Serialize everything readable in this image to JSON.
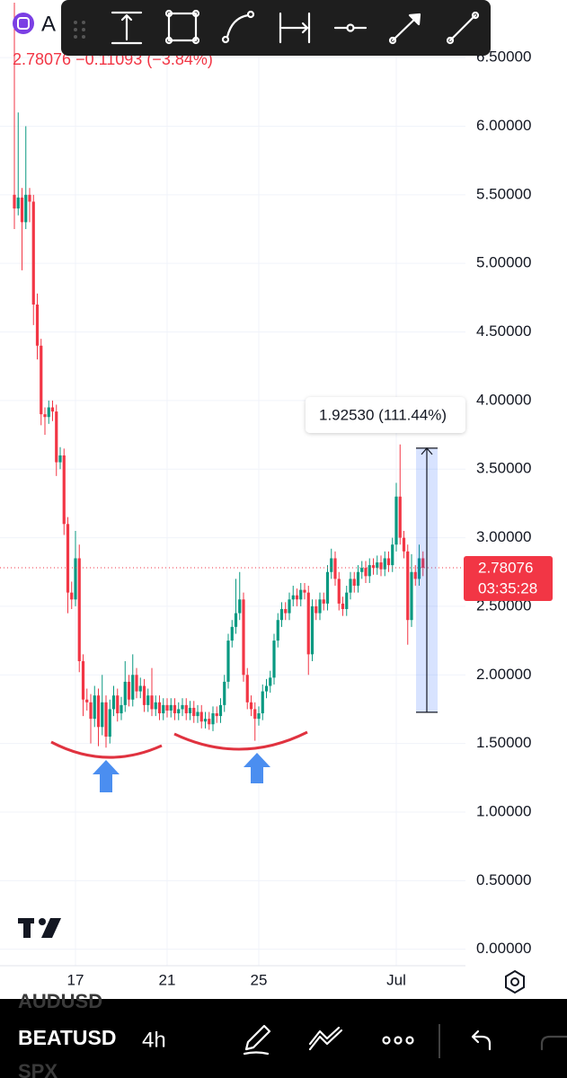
{
  "header": {
    "symbol": "A",
    "quote": "2.78076 −0.11093 (−3.84%)"
  },
  "chart_data": {
    "type": "candlestick",
    "categories": [
      null,
      null,
      null,
      null,
      null,
      null,
      null,
      null,
      null,
      null,
      null,
      null,
      null,
      null,
      null,
      null,
      "17",
      null,
      null,
      null,
      null,
      null,
      null,
      null,
      null,
      null,
      null,
      null,
      null,
      null,
      null,
      null,
      null,
      null,
      null,
      null,
      null,
      null,
      null,
      null,
      "21",
      null,
      null,
      null,
      null,
      null,
      null,
      null,
      null,
      null,
      null,
      null,
      null,
      null,
      null,
      null,
      null,
      null,
      null,
      null,
      null,
      null,
      null,
      null,
      "25",
      null,
      null,
      null,
      null,
      null,
      null,
      null,
      null,
      null,
      null,
      null,
      null,
      null,
      null,
      null,
      null,
      null,
      null,
      null,
      null,
      null,
      null,
      null,
      null,
      null,
      null,
      null,
      null,
      null,
      null,
      null,
      null,
      null,
      null,
      null,
      "Jul",
      null,
      null,
      null,
      null,
      null,
      null,
      null
    ],
    "open": [
      5.5,
      5.4,
      5.48,
      5.3,
      5.5,
      5.45,
      4.7,
      4.4,
      3.9,
      3.88,
      3.95,
      3.92,
      3.55,
      3.6,
      3.1,
      2.6,
      2.55,
      2.85,
      2.1,
      1.82,
      1.8,
      1.68,
      1.85,
      1.62,
      1.8,
      1.55,
      1.75,
      1.85,
      1.72,
      1.78,
      1.95,
      1.82,
      2.0,
      1.88,
      1.92,
      1.78,
      1.85,
      1.75,
      1.8,
      1.72,
      1.78,
      1.74,
      1.78,
      1.72,
      1.75,
      1.78,
      1.72,
      1.76,
      1.7,
      1.73,
      1.66,
      1.68,
      1.64,
      1.72,
      1.7,
      1.78,
      1.95,
      2.25,
      2.35,
      2.45,
      2.55,
      2.0,
      1.8,
      1.75,
      1.68,
      1.72,
      1.88,
      1.92,
      1.98,
      2.25,
      2.4,
      2.48,
      2.45,
      2.55,
      2.58,
      2.55,
      2.62,
      2.6,
      2.15,
      2.5,
      2.45,
      2.55,
      2.52,
      2.75,
      2.85,
      2.7,
      2.52,
      2.48,
      2.6,
      2.7,
      2.65,
      2.75,
      2.78,
      2.72,
      2.8,
      2.78,
      2.82,
      2.77,
      2.85,
      2.8,
      2.95,
      3.3,
      3.0,
      2.9,
      2.4,
      2.75,
      2.7,
      2.85
    ],
    "high": [
      6.9,
      6.1,
      5.55,
      6.0,
      5.55,
      5.5,
      4.78,
      4.45,
      3.95,
      4.0,
      4.0,
      3.97,
      3.66,
      3.65,
      3.15,
      2.68,
      3.05,
      2.95,
      2.15,
      1.9,
      1.86,
      1.92,
      1.9,
      2.0,
      1.85,
      1.82,
      1.92,
      1.9,
      1.84,
      2.1,
      2.0,
      2.15,
      2.05,
      1.98,
      1.97,
      1.9,
      2.05,
      1.85,
      1.85,
      1.83,
      1.83,
      1.83,
      1.83,
      1.8,
      1.83,
      1.83,
      1.81,
      1.81,
      1.78,
      1.78,
      1.73,
      1.73,
      1.77,
      1.77,
      1.83,
      2.0,
      2.3,
      2.4,
      2.7,
      2.75,
      2.6,
      2.05,
      1.85,
      1.8,
      1.77,
      1.93,
      1.97,
      2.03,
      2.3,
      2.45,
      2.53,
      2.53,
      2.6,
      2.65,
      2.63,
      2.67,
      2.67,
      2.65,
      2.55,
      2.55,
      2.6,
      2.6,
      2.8,
      2.92,
      2.9,
      2.75,
      2.57,
      2.65,
      2.75,
      2.75,
      2.8,
      2.83,
      2.83,
      2.85,
      2.85,
      2.87,
      2.87,
      2.9,
      2.9,
      3.0,
      3.4,
      3.68,
      3.05,
      2.95,
      2.88,
      2.8,
      2.95,
      2.9
    ],
    "low": [
      5.25,
      5.35,
      4.95,
      5.25,
      5.3,
      4.55,
      4.3,
      3.82,
      3.75,
      3.83,
      3.85,
      3.45,
      3.5,
      3.02,
      2.45,
      2.48,
      2.5,
      2.02,
      1.7,
      1.74,
      1.5,
      1.62,
      1.48,
      1.56,
      1.47,
      1.5,
      1.7,
      1.66,
      1.67,
      1.73,
      1.77,
      1.77,
      1.83,
      1.83,
      1.73,
      1.73,
      1.7,
      1.7,
      1.67,
      1.67,
      1.69,
      1.69,
      1.67,
      1.67,
      1.7,
      1.67,
      1.67,
      1.65,
      1.65,
      1.61,
      1.61,
      1.6,
      1.59,
      1.65,
      1.65,
      1.73,
      1.9,
      2.2,
      2.3,
      2.4,
      1.95,
      1.75,
      1.7,
      1.52,
      1.63,
      1.67,
      1.83,
      1.87,
      1.93,
      2.2,
      2.35,
      2.4,
      2.4,
      2.5,
      2.5,
      2.5,
      2.55,
      2.0,
      2.1,
      2.4,
      2.4,
      2.47,
      2.47,
      2.7,
      2.65,
      2.47,
      2.43,
      2.43,
      2.55,
      2.6,
      2.6,
      2.7,
      2.67,
      2.67,
      2.73,
      2.73,
      2.72,
      2.72,
      2.75,
      2.75,
      2.9,
      2.95,
      2.85,
      2.22,
      2.35,
      2.65,
      2.65,
      2.72
    ],
    "close": [
      5.4,
      5.48,
      5.3,
      5.5,
      5.45,
      4.7,
      4.4,
      3.9,
      3.88,
      3.95,
      3.92,
      3.55,
      3.6,
      3.1,
      2.6,
      2.55,
      2.85,
      2.1,
      1.82,
      1.8,
      1.68,
      1.85,
      1.62,
      1.8,
      1.55,
      1.75,
      1.85,
      1.72,
      1.78,
      1.95,
      1.82,
      2.0,
      1.88,
      1.92,
      1.78,
      1.85,
      1.75,
      1.8,
      1.72,
      1.78,
      1.74,
      1.78,
      1.72,
      1.75,
      1.78,
      1.72,
      1.76,
      1.7,
      1.73,
      1.66,
      1.68,
      1.64,
      1.72,
      1.7,
      1.78,
      1.95,
      2.25,
      2.35,
      2.45,
      2.55,
      2.0,
      1.8,
      1.75,
      1.68,
      1.72,
      1.88,
      1.92,
      1.98,
      2.25,
      2.4,
      2.48,
      2.45,
      2.55,
      2.58,
      2.55,
      2.62,
      2.6,
      2.15,
      2.5,
      2.45,
      2.55,
      2.52,
      2.75,
      2.85,
      2.7,
      2.52,
      2.48,
      2.6,
      2.7,
      2.65,
      2.75,
      2.78,
      2.72,
      2.8,
      2.78,
      2.82,
      2.77,
      2.85,
      2.8,
      2.95,
      3.3,
      3.0,
      2.9,
      2.4,
      2.75,
      2.7,
      2.85,
      2.78076
    ],
    "up_color": "#089981",
    "down_color": "#f23645",
    "ylim": [
      -0.12,
      6.92
    ],
    "yticks": [
      {
        "value": 0,
        "label": "0.00000"
      },
      {
        "value": 0.5,
        "label": "0.50000"
      },
      {
        "value": 1,
        "label": "1.00000"
      },
      {
        "value": 1.5,
        "label": "1.50000"
      },
      {
        "value": 2,
        "label": "2.00000"
      },
      {
        "value": 2.5,
        "label": "2.50000"
      },
      {
        "value": 3,
        "label": "3.00000"
      },
      {
        "value": 3.5,
        "label": "3.50000"
      },
      {
        "value": 4,
        "label": "4.00000"
      },
      {
        "value": 4.5,
        "label": "4.50000"
      },
      {
        "value": 5,
        "label": "5.00000"
      },
      {
        "value": 5.5,
        "label": "5.50000"
      },
      {
        "value": 6,
        "label": "6.00000"
      },
      {
        "value": 6.5,
        "label": "6.50000"
      }
    ],
    "grid": true,
    "last_price": 2.78076,
    "countdown": "03:35:28",
    "measure": {
      "label": "1.92530 (111.44%)",
      "from": 1.7276,
      "to": 3.6529
    }
  },
  "bottom_bar": {
    "symbols": [
      "AUDUSD",
      "BEATUSD",
      "SPX"
    ],
    "interval": "4h"
  }
}
